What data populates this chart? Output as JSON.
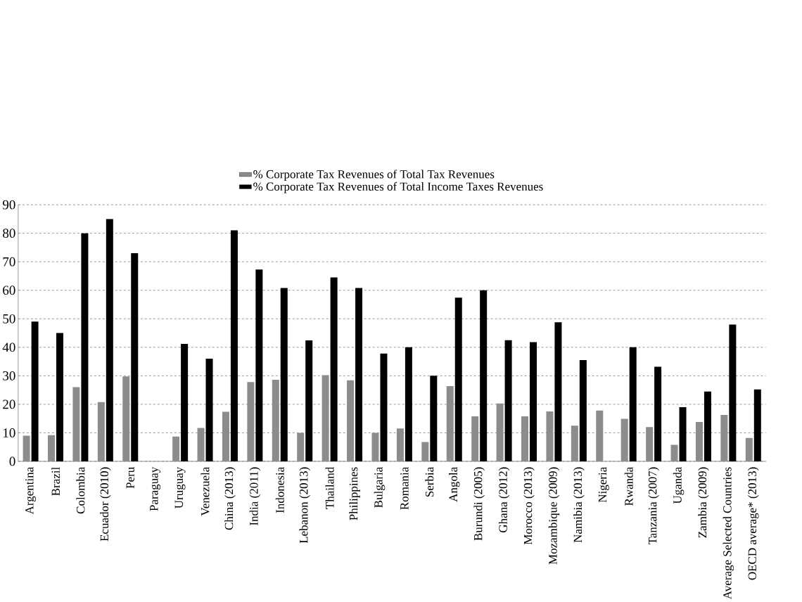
{
  "chart_data": {
    "type": "bar",
    "categories": [
      "Argentina",
      "Brazil",
      "Colombia",
      "Ecuador (2010)",
      "Peru",
      "Paraguay",
      "Uruguay",
      "Venezuela",
      "China (2013)",
      "India (2011)",
      "Indonesia",
      "Lebanon (2013)",
      "Thailand",
      "Philippines",
      "Bulgaria",
      "Romania",
      "Serbia",
      "Angola",
      "Burundi (2005)",
      "Ghana (2012)",
      "Morocco (2013)",
      "Mozambique (2009)",
      "Namibia (2013)",
      "Nigeria",
      "Rwanda",
      "Tanzania (2007)",
      "Uganda",
      "Zambia (2009)",
      "Average Selected Countries",
      "OECD average* (2013)"
    ],
    "series": [
      {
        "name": "% Corporate Tax Revenues of Total Tax Revenues",
        "color": "#8c8c8c",
        "values": [
          9,
          9.2,
          26,
          20.8,
          29.8,
          null,
          8.7,
          11.7,
          17.4,
          27.8,
          28.6,
          10,
          30.2,
          28.4,
          10,
          11.5,
          6.8,
          26.4,
          15.8,
          20.3,
          15.8,
          17.5,
          12.5,
          17.8,
          14.9,
          12,
          5.8,
          13.8,
          16.3,
          8.2
        ]
      },
      {
        "name": "% Corporate Tax Revenues of Total Income Taxes Revenues",
        "color": "#000000",
        "values": [
          49,
          45,
          80,
          85,
          73,
          null,
          41.2,
          36,
          81,
          67.3,
          60.8,
          42.4,
          64.5,
          60.8,
          37.8,
          40,
          30,
          57.4,
          60,
          42.5,
          41.8,
          48.8,
          35.5,
          null,
          40,
          33.2,
          19,
          24.5,
          48,
          25.2
        ]
      }
    ],
    "ylim": [
      0,
      90
    ],
    "yticks": [
      0,
      10,
      20,
      30,
      40,
      50,
      60,
      70,
      80,
      90
    ],
    "grid": "y",
    "legend": "top"
  }
}
